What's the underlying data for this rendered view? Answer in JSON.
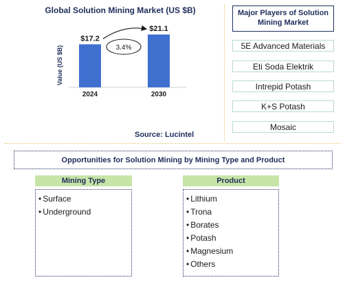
{
  "chart_data": {
    "type": "bar",
    "title": "Global Solution Mining Market (US $B)",
    "ylabel": "Value (US $B)",
    "categories": [
      "2024",
      "2030"
    ],
    "values": [
      17.2,
      21.1
    ],
    "value_labels": [
      "$17.2",
      "$21.1"
    ],
    "cagr_label": "3.4%",
    "ylim": [
      0,
      25
    ],
    "grid": false,
    "bar_color": "#3f6fcf",
    "source": "Source: Lucintel"
  },
  "players": {
    "title": "Major Players of Solution Mining Market",
    "items": [
      "5E Advanced Materials",
      "Eti Soda Elektrik",
      "Intrepid Potash",
      "K+S Potash",
      "Mosaic"
    ]
  },
  "opportunities": {
    "title": "Opportunities for Solution Mining by Mining Type and Product",
    "mining_type": {
      "title": "Mining Type",
      "items": [
        "Surface",
        "Underground"
      ]
    },
    "product": {
      "title": "Product",
      "items": [
        "Lithium",
        "Trona",
        "Borates",
        "Potash",
        "Magnesium",
        "Others"
      ]
    }
  }
}
